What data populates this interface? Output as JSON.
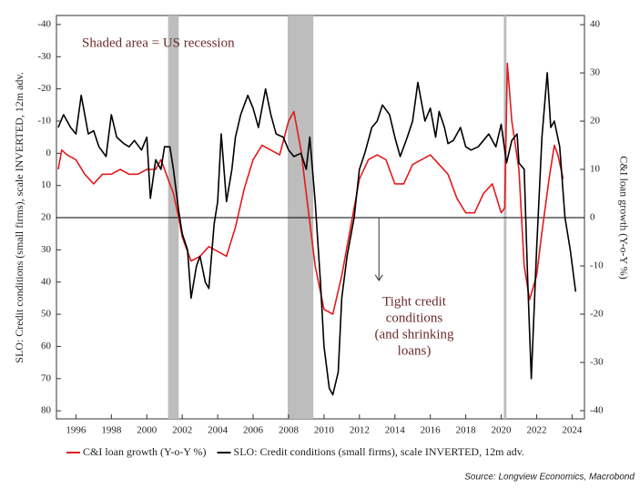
{
  "chart_data": {
    "type": "line",
    "annotation": "Shaded area = US recession",
    "annotation2": [
      "Tight credit",
      "conditions",
      "(and shrinking",
      "loans)"
    ],
    "ylabel": "SLO: Credit conditions (small firms), scale INVERTED, 12m adv.",
    "y2label": "C&I loan growth (Y-o-Y %)",
    "source": "Source: Longview Economics, Macrobond",
    "xlim": [
      1994.9,
      2024.7
    ],
    "xticks": [
      1996,
      1998,
      2000,
      2002,
      2004,
      2006,
      2008,
      2010,
      2012,
      2014,
      2016,
      2018,
      2020,
      2022,
      2024
    ],
    "ylim": [
      82.5,
      -42.8
    ],
    "yticks": [
      -40,
      -30,
      -20,
      -10,
      0,
      10,
      20,
      30,
      40,
      50,
      60,
      70,
      80
    ],
    "y2lim": [
      -41.7,
      41.9
    ],
    "y2ticks": [
      -40,
      -30,
      -20,
      -10,
      0,
      10,
      20,
      30,
      40
    ],
    "recessions": [
      [
        2001.2,
        2001.8
      ],
      [
        2007.95,
        2009.4
      ],
      [
        2020.15,
        2020.3
      ]
    ],
    "recession_color": "#bdbdbd",
    "arrow": [
      2013.1,
      0,
      -13
    ],
    "series": [
      {
        "name": "C&I loan growth (Y-o-Y %)",
        "color": "#e31a1c",
        "axis": "y2",
        "x": [
          1995.0,
          1995.2,
          1995.5,
          1996.0,
          1996.5,
          1997.0,
          1997.5,
          1998.0,
          1998.5,
          1999.0,
          1999.5,
          2000.0,
          2000.5,
          2000.8,
          2001.0,
          2001.5,
          2001.8,
          2002.0,
          2002.5,
          2003.0,
          2003.5,
          2004.0,
          2004.5,
          2005.0,
          2005.5,
          2006.0,
          2006.5,
          2007.0,
          2007.5,
          2008.0,
          2008.3,
          2008.7,
          2009.0,
          2009.5,
          2010.0,
          2010.5,
          2011.0,
          2011.5,
          2012.0,
          2012.5,
          2013.0,
          2013.5,
          2014.0,
          2014.5,
          2015.0,
          2015.5,
          2016.0,
          2016.5,
          2017.0,
          2017.5,
          2018.0,
          2018.5,
          2019.0,
          2019.5,
          2020.0,
          2020.2,
          2020.35,
          2020.6,
          2021.0,
          2021.3,
          2021.6,
          2022.0,
          2022.3,
          2022.7,
          2023.0,
          2023.2,
          2023.5
        ],
        "values": [
          10,
          14,
          13,
          12,
          9,
          7,
          9,
          9,
          10,
          9,
          9,
          10,
          10,
          12,
          10,
          5,
          0,
          -4,
          -9,
          -8,
          -6,
          -7,
          -8,
          -2,
          6,
          12,
          15,
          14,
          13,
          20,
          22,
          14,
          5,
          -10,
          -19,
          -20,
          -12,
          -2,
          8,
          12,
          13,
          12,
          7,
          7,
          11,
          12,
          13,
          11,
          9,
          4,
          1,
          1,
          5,
          7,
          1,
          2,
          32,
          20,
          10,
          -10,
          -17,
          -12,
          -3,
          8,
          15,
          13,
          8
        ]
      },
      {
        "name": "SLO: Credit conditions (small firms), scale INVERTED, 12m adv.",
        "color": "#000000",
        "axis": "y",
        "x": [
          1995.0,
          1995.3,
          1995.7,
          1996.0,
          1996.3,
          1996.7,
          1997.0,
          1997.3,
          1997.7,
          1998.0,
          1998.3,
          1998.7,
          1999.0,
          1999.3,
          1999.7,
          2000.0,
          2000.2,
          2000.5,
          2000.8,
          2001.0,
          2001.3,
          2001.5,
          2001.8,
          2002.0,
          2002.3,
          2002.5,
          2002.8,
          2003.0,
          2003.3,
          2003.5,
          2003.8,
          2004.0,
          2004.2,
          2004.5,
          2004.8,
          2005.0,
          2005.3,
          2005.7,
          2006.0,
          2006.3,
          2006.7,
          2007.0,
          2007.3,
          2007.7,
          2008.0,
          2008.3,
          2008.7,
          2009.0,
          2009.2,
          2009.5,
          2009.8,
          2010.0,
          2010.3,
          2010.5,
          2010.8,
          2011.0,
          2011.3,
          2011.7,
          2012.0,
          2012.3,
          2012.7,
          2013.0,
          2013.3,
          2013.7,
          2014.0,
          2014.3,
          2014.7,
          2015.0,
          2015.3,
          2015.7,
          2016.0,
          2016.3,
          2016.5,
          2016.8,
          2017.0,
          2017.3,
          2017.7,
          2018.0,
          2018.3,
          2018.7,
          2019.0,
          2019.3,
          2019.7,
          2020.0,
          2020.3,
          2020.6,
          2020.9,
          2021.0,
          2021.3,
          2021.5,
          2021.7,
          2022.0,
          2022.3,
          2022.6,
          2022.8,
          2023.0,
          2023.3,
          2023.6,
          2023.9,
          2024.2
        ],
        "values": [
          -8,
          -12,
          -8,
          -6,
          -18,
          -6,
          -7,
          -2,
          1,
          -12,
          -5,
          -3,
          -2,
          -4,
          -1,
          -5,
          14,
          2,
          5,
          -2,
          -2,
          5,
          18,
          25,
          30,
          45,
          35,
          32,
          40,
          42,
          22,
          15,
          -6,
          15,
          5,
          -5,
          -12,
          -18,
          -14,
          -8,
          -20,
          -12,
          -6,
          -5,
          -1,
          1,
          0,
          5,
          -5,
          15,
          40,
          60,
          73,
          75,
          68,
          45,
          32,
          20,
          5,
          0,
          -8,
          -10,
          -15,
          -12,
          -5,
          1,
          -5,
          -10,
          -22,
          -10,
          -14,
          -5,
          -13,
          -8,
          -3,
          -4,
          -8,
          -2,
          -1,
          -2,
          -4,
          -6,
          -2,
          -9,
          3,
          -4,
          -6,
          3,
          5,
          40,
          70,
          30,
          -5,
          -25,
          -8,
          -10,
          -2,
          20,
          30,
          43
        ]
      }
    ]
  }
}
